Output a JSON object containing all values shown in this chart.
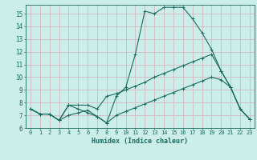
{
  "xlabel": "Humidex (Indice chaleur)",
  "bg_color": "#cceee8",
  "plot_bg_color": "#cceee8",
  "grid_color": "#d4b8c0",
  "line_color": "#1a6b60",
  "xlim": [
    -0.5,
    23.5
  ],
  "ylim": [
    6,
    15.7
  ],
  "yticks": [
    6,
    7,
    8,
    9,
    10,
    11,
    12,
    13,
    14,
    15
  ],
  "xticks": [
    0,
    1,
    2,
    3,
    4,
    5,
    6,
    7,
    8,
    9,
    10,
    11,
    12,
    13,
    14,
    15,
    16,
    17,
    18,
    19,
    20,
    21,
    22,
    23
  ],
  "line1_x": [
    0,
    1,
    2,
    3,
    4,
    5,
    6,
    7,
    8,
    9,
    10,
    11,
    12,
    13,
    14,
    15,
    16,
    17,
    18,
    19,
    20,
    21,
    22,
    23
  ],
  "line1_y": [
    7.5,
    7.1,
    7.1,
    6.6,
    7.8,
    7.5,
    7.2,
    6.9,
    6.4,
    8.5,
    9.2,
    11.8,
    15.2,
    15.0,
    15.5,
    15.5,
    15.5,
    14.6,
    13.5,
    12.2,
    10.5,
    9.2,
    7.5,
    6.7
  ],
  "line2_x": [
    0,
    1,
    2,
    3,
    4,
    5,
    6,
    7,
    8,
    9,
    10,
    11,
    12,
    13,
    14,
    15,
    16,
    17,
    18,
    19,
    20,
    21,
    22,
    23
  ],
  "line2_y": [
    7.5,
    7.1,
    7.1,
    6.6,
    7.8,
    7.8,
    7.8,
    7.5,
    8.5,
    8.7,
    9.0,
    9.3,
    9.6,
    10.0,
    10.3,
    10.6,
    10.9,
    11.2,
    11.5,
    11.8,
    10.5,
    9.2,
    7.5,
    6.7
  ],
  "line3_x": [
    0,
    1,
    2,
    3,
    4,
    5,
    6,
    7,
    8,
    9,
    10,
    11,
    12,
    13,
    14,
    15,
    16,
    17,
    18,
    19,
    20,
    21,
    22,
    23
  ],
  "line3_y": [
    7.5,
    7.1,
    7.1,
    6.6,
    7.0,
    7.2,
    7.4,
    6.9,
    6.4,
    7.0,
    7.3,
    7.6,
    7.9,
    8.2,
    8.5,
    8.8,
    9.1,
    9.4,
    9.7,
    10.0,
    9.8,
    9.2,
    7.5,
    6.7
  ]
}
